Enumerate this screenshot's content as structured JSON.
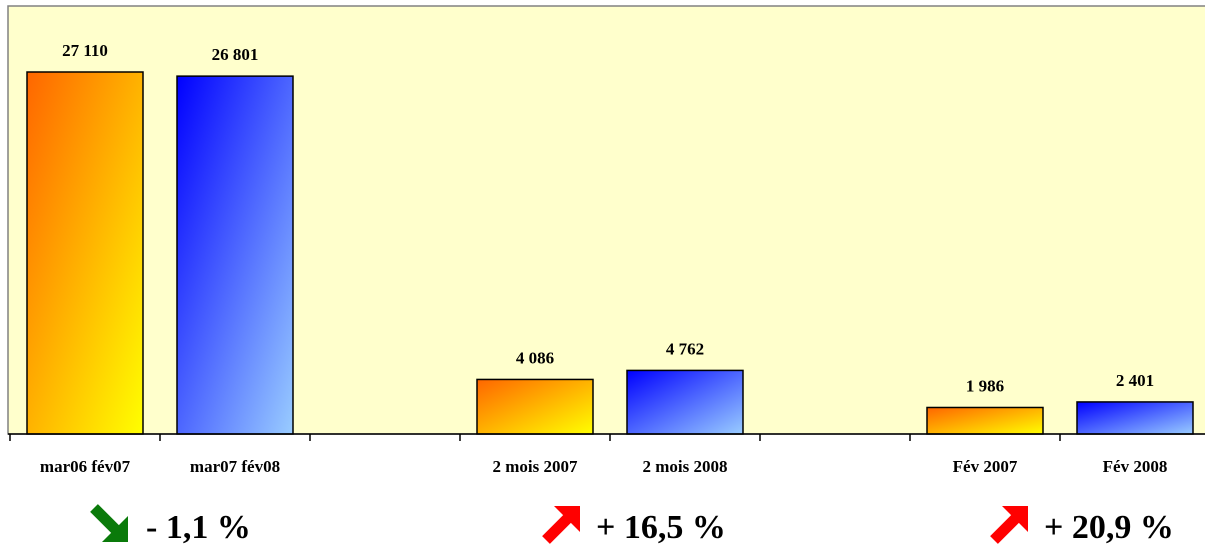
{
  "chart_data": {
    "type": "bar",
    "title": "",
    "xlabel": "",
    "ylabel": "",
    "ylim": [
      0,
      30000
    ],
    "grid": false,
    "legend": "none",
    "bars": [
      {
        "label": "mar06 fév07",
        "value": 27110,
        "value_label": "27 110",
        "series": "previous",
        "slot": 0
      },
      {
        "label": "mar07 fév08",
        "value": 26801,
        "value_label": "26 801",
        "series": "current",
        "slot": 1
      },
      {
        "label": "2 mois 2007",
        "value": 4086,
        "value_label": "4 086",
        "series": "previous",
        "slot": 3
      },
      {
        "label": "2 mois 2008",
        "value": 4762,
        "value_label": "4 762",
        "series": "current",
        "slot": 4
      },
      {
        "label": "Fév 2007",
        "value": 1986,
        "value_label": "1 986",
        "series": "previous",
        "slot": 6
      },
      {
        "label": "Fév 2008",
        "value": 2401,
        "value_label": "2 401",
        "series": "current",
        "slot": 7
      }
    ],
    "annotations": [
      {
        "text": "- 1,1 %",
        "direction": "down",
        "arrow_color": "#0a7a0a",
        "group": 0
      },
      {
        "text": "+ 16,5 %",
        "direction": "up",
        "arrow_color": "#ff0000",
        "group": 1
      },
      {
        "text": "+ 20,9 %",
        "direction": "up",
        "arrow_color": "#ff0000",
        "group": 2
      }
    ],
    "colors": {
      "plot_background": "#ffffcc",
      "previous_gradient": [
        "#ff6600",
        "#ffff00"
      ],
      "current_gradient": [
        "#0000ff",
        "#99ccff"
      ]
    }
  }
}
